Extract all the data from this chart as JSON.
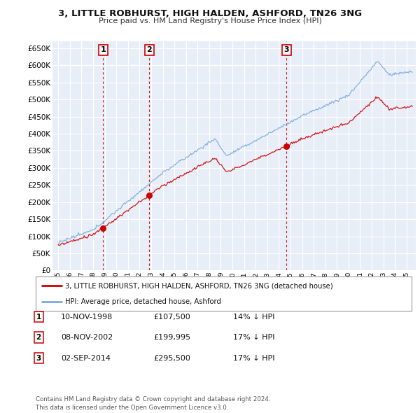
{
  "title": "3, LITTLE ROBHURST, HIGH HALDEN, ASHFORD, TN26 3NG",
  "subtitle": "Price paid vs. HM Land Registry's House Price Index (HPI)",
  "bg_color": "#ffffff",
  "plot_bg_color": "#e8eef8",
  "grid_color": "#ffffff",
  "hpi_color": "#7aaadd",
  "price_color": "#cc0000",
  "dashed_line_color": "#cc0000",
  "sale_points": [
    {
      "date_num": 1998.87,
      "price": 107500,
      "label": "1"
    },
    {
      "date_num": 2002.85,
      "price": 199995,
      "label": "2"
    },
    {
      "date_num": 2014.67,
      "price": 295500,
      "label": "3"
    }
  ],
  "yticks": [
    0,
    50000,
    100000,
    150000,
    200000,
    250000,
    300000,
    350000,
    400000,
    450000,
    500000,
    550000,
    600000,
    650000
  ],
  "ytick_labels": [
    "£0",
    "£50K",
    "£100K",
    "£150K",
    "£200K",
    "£250K",
    "£300K",
    "£350K",
    "£400K",
    "£450K",
    "£500K",
    "£550K",
    "£600K",
    "£650K"
  ],
  "xlim": [
    1994.5,
    2025.8
  ],
  "ylim": [
    0,
    670000
  ],
  "legend_property_label": "3, LITTLE ROBHURST, HIGH HALDEN, ASHFORD, TN26 3NG (detached house)",
  "legend_hpi_label": "HPI: Average price, detached house, Ashford",
  "table_rows": [
    {
      "num": "1",
      "date": "10-NOV-1998",
      "price": "£107,500",
      "pct": "14% ↓ HPI"
    },
    {
      "num": "2",
      "date": "08-NOV-2002",
      "price": "£199,995",
      "pct": "17% ↓ HPI"
    },
    {
      "num": "3",
      "date": "02-SEP-2014",
      "price": "£295,500",
      "pct": "17% ↓ HPI"
    }
  ],
  "footer": "Contains HM Land Registry data © Crown copyright and database right 2024.\nThis data is licensed under the Open Government Licence v3.0.",
  "xtick_years": [
    1995,
    1996,
    1997,
    1998,
    1999,
    2000,
    2001,
    2002,
    2003,
    2004,
    2005,
    2006,
    2007,
    2008,
    2009,
    2010,
    2011,
    2012,
    2013,
    2014,
    2015,
    2016,
    2017,
    2018,
    2019,
    2020,
    2021,
    2022,
    2023,
    2024,
    2025
  ]
}
